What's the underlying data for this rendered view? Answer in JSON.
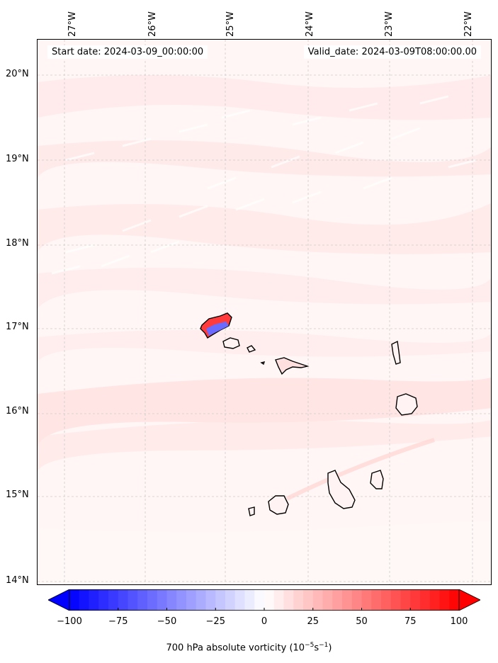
{
  "map": {
    "start_date": "Start date: 2024-03-09_00:00:00",
    "valid_date": "Valid_date: 2024-03-09T08:00:00.00",
    "lon_labels": [
      "27°W",
      "26°W",
      "25°W",
      "24°W",
      "23°W",
      "22°W"
    ],
    "lat_labels": [
      "20°N",
      "19°N",
      "18°N",
      "17°N",
      "16°N",
      "15°N",
      "14°N"
    ],
    "colorbar": {
      "ticks": [
        "−100",
        "−75",
        "−50",
        "−25",
        "0",
        "25",
        "50",
        "75",
        "100"
      ],
      "min": -100,
      "max": 100,
      "negative_color": "#0000ff",
      "positive_color": "#ff0000",
      "title_main": "700 hPa absolute vorticity (10",
      "title_exp1": "−5",
      "title_mid": "s",
      "title_exp2": "−1",
      "title_end": ")"
    }
  }
}
